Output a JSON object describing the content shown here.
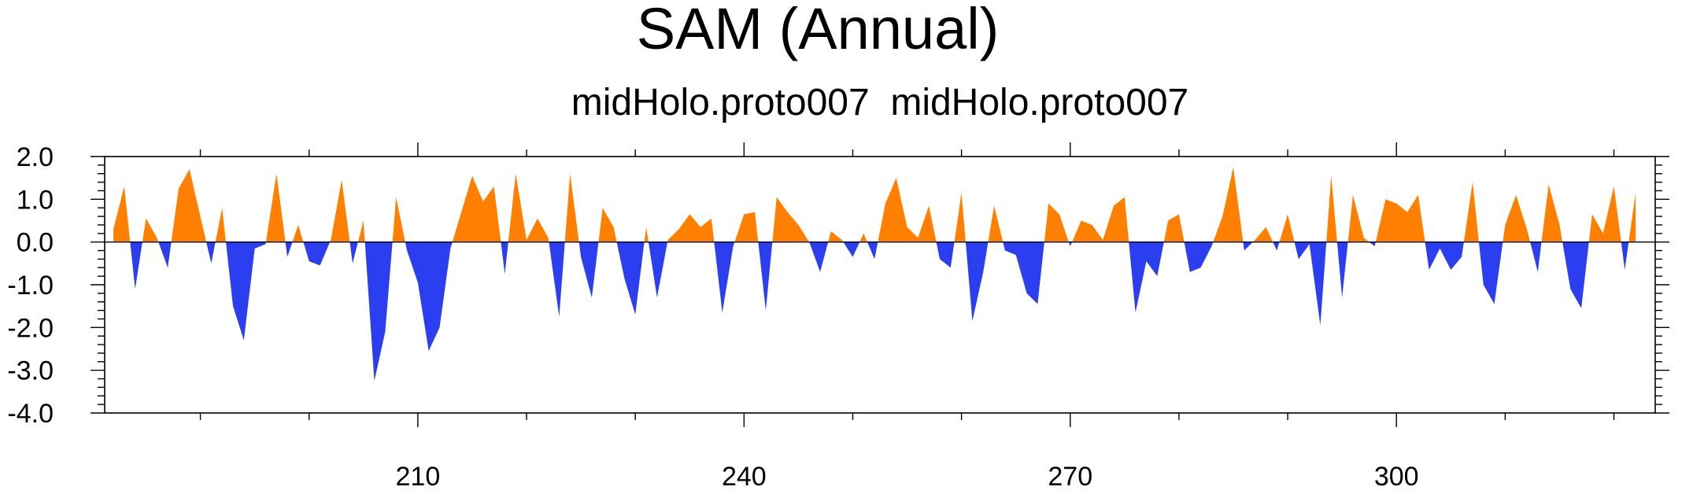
{
  "chart_data": {
    "type": "area",
    "title": "SAM (Annual)",
    "subtitle": "midHolo.proto007  midHolo.proto007",
    "x": [
      182,
      183,
      184,
      185,
      186,
      187,
      188,
      189,
      190,
      191,
      192,
      193,
      194,
      195,
      196,
      197,
      198,
      199,
      200,
      201,
      202,
      203,
      204,
      205,
      206,
      207,
      208,
      209,
      210,
      211,
      212,
      213,
      214,
      215,
      216,
      217,
      218,
      219,
      220,
      221,
      222,
      223,
      224,
      225,
      226,
      227,
      228,
      229,
      230,
      231,
      232,
      233,
      234,
      235,
      236,
      237,
      238,
      239,
      240,
      241,
      242,
      243,
      244,
      245,
      246,
      247,
      248,
      249,
      250,
      251,
      252,
      253,
      254,
      255,
      256,
      257,
      258,
      259,
      260,
      261,
      262,
      263,
      264,
      265,
      266,
      267,
      268,
      269,
      270,
      271,
      272,
      273,
      274,
      275,
      276,
      277,
      278,
      279,
      280,
      281,
      282,
      283,
      284,
      285,
      286,
      287,
      288,
      289,
      290,
      291,
      292,
      293,
      294,
      295,
      296,
      297,
      298,
      299,
      300,
      301,
      302,
      303,
      304,
      305,
      306,
      307,
      308,
      309,
      310,
      311,
      312,
      313,
      314,
      315,
      316,
      317,
      318,
      319,
      320,
      321,
      322
    ],
    "values": [
      0.3,
      1.3,
      -1.1,
      0.55,
      0.1,
      -0.6,
      1.25,
      1.7,
      0.6,
      -0.5,
      0.8,
      -1.5,
      -2.3,
      -0.15,
      -0.05,
      1.6,
      -0.35,
      0.4,
      -0.45,
      -0.55,
      0.05,
      1.45,
      -0.5,
      0.5,
      -3.25,
      -2.1,
      1.05,
      -0.2,
      -0.95,
      -2.55,
      -2.0,
      -0.15,
      0.7,
      1.55,
      0.95,
      1.3,
      -0.75,
      1.6,
      0.05,
      0.55,
      0.1,
      -1.75,
      1.6,
      -0.35,
      -1.3,
      0.8,
      0.35,
      -0.85,
      -1.7,
      0.35,
      -1.3,
      0.05,
      0.3,
      0.65,
      0.35,
      0.55,
      -1.65,
      -0.1,
      0.65,
      0.7,
      -1.6,
      1.05,
      0.7,
      0.4,
      0.0,
      -0.7,
      0.25,
      0.05,
      -0.35,
      0.2,
      -0.4,
      0.9,
      1.5,
      0.35,
      0.1,
      0.85,
      -0.4,
      -0.6,
      1.15,
      -1.85,
      -0.7,
      0.85,
      -0.2,
      -0.3,
      -1.2,
      -1.45,
      0.9,
      0.65,
      -0.1,
      0.5,
      0.4,
      0.05,
      0.85,
      1.05,
      -1.65,
      -0.45,
      -0.8,
      0.5,
      0.65,
      -0.7,
      -0.6,
      -0.1,
      0.6,
      1.75,
      -0.2,
      0.05,
      0.35,
      -0.2,
      0.65,
      -0.4,
      -0.05,
      -1.95,
      1.55,
      -1.3,
      1.1,
      0.1,
      -0.1,
      1.0,
      0.9,
      0.7,
      1.1,
      -0.65,
      -0.15,
      -0.65,
      -0.35,
      1.4,
      -1.0,
      -1.45,
      0.4,
      1.1,
      0.3,
      -0.7,
      1.35,
      0.4,
      -1.1,
      -1.55,
      0.65,
      0.2,
      1.3,
      -0.65,
      1.15
    ],
    "positive_color": "#ff8000",
    "negative_color": "#2b3ff0",
    "xlim": [
      181.2,
      323.8
    ],
    "xticks": [
      210,
      240,
      270,
      300
    ],
    "ylim": [
      -4,
      2
    ],
    "yticks": [
      {
        "value": -4,
        "label": "-4.0"
      },
      {
        "value": -3,
        "label": "-3.0"
      },
      {
        "value": -2,
        "label": "-2.0"
      },
      {
        "value": -1,
        "label": "-1.0"
      },
      {
        "value": 0,
        "label": "0.0"
      },
      {
        "value": 1,
        "label": "1.0"
      },
      {
        "value": 2,
        "label": "2.0"
      }
    ]
  }
}
